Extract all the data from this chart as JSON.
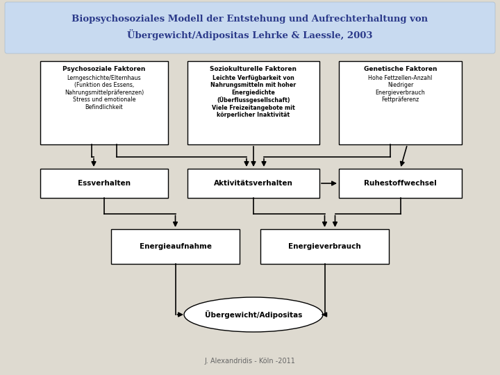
{
  "title_line1": "Biopsychosoziales Modell der Entstehung und Aufrechterhaltung von",
  "title_line2": "Übergewicht/Adipositas Lehrke & Laessle, 2003",
  "title_bg_top": "#ccddf5",
  "title_bg_bot": "#a8c0e0",
  "bg_color": "#dedad0",
  "box_bg": "#ffffff",
  "footer": "J. Alexandridis - Köln -2011",
  "psych_title": "Psychosoziale Faktoren",
  "psych_body": "Lerngeschichte/Elternhaus\n(Funktion des Essens,\nNahrungsmittelpräferenzen)\nStress und emotionale\nBefindlichkeit",
  "sozio_title": "Soziokulturelle Faktoren",
  "sozio_body": "Leichte Verfügbarkeit von\nNahrungsmitteln mit hoher\nEnergiedichte\n(Überflussgesellschaft)\nViele Freizeitangebote mit\nkörperlicher Inaktivität",
  "gen_title": "Genetische Faktoren",
  "gen_body": "Hohe Fettzellen-Anzahl\nNiedriger\nEnergieverbrauch\nFettpräferenz",
  "ess_label": "Essverhalten",
  "akt_label": "Aktivitätsverhalten",
  "ruh_label": "Ruhestoffwechsel",
  "enauf_label": "Energieaufnahme",
  "enver_label": "Energieverbrauch",
  "uber_label": "Übergewicht/Adipositas",
  "title_color": "#2b3a8a",
  "box_text_normal": "#000000"
}
